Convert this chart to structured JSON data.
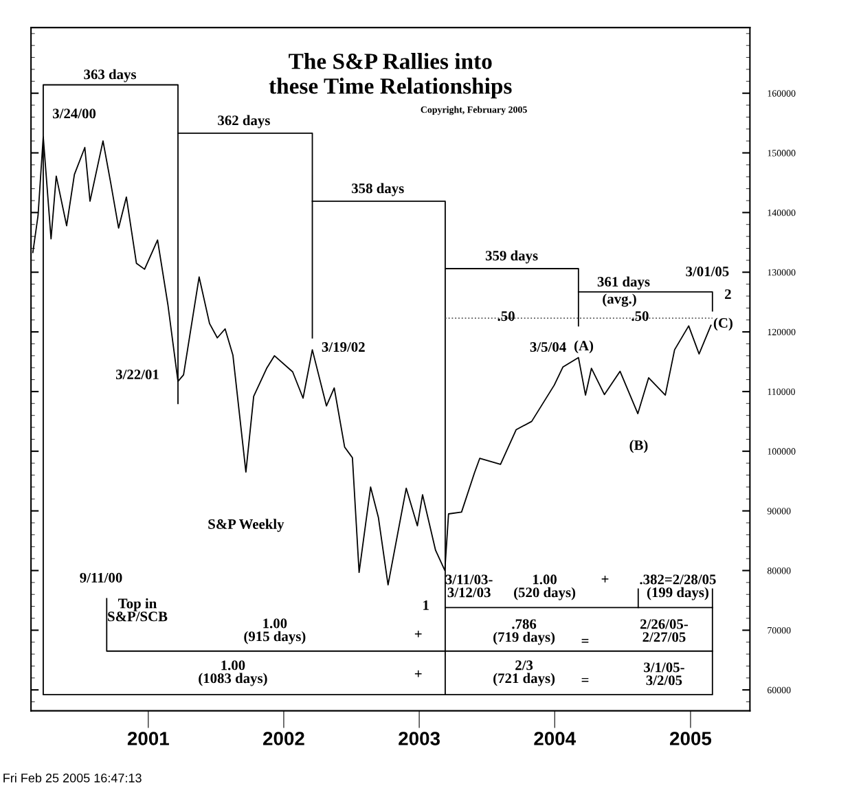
{
  "chart_data": {
    "type": "line",
    "title": "The S&P Rallies into\nthese Time Relationships",
    "subtitle": "Copyright, February 2005",
    "xlim": [
      "2000-02-20",
      "2005-06-10"
    ],
    "xticks": [
      {
        "value": "2001-01-01",
        "label": "2001"
      },
      {
        "value": "2002-01-01",
        "label": "2002"
      },
      {
        "value": "2003-01-01",
        "label": "2003"
      },
      {
        "value": "2004-01-01",
        "label": "2004"
      },
      {
        "value": "2005-01-01",
        "label": "2005"
      }
    ],
    "ylim": [
      56500,
      171000
    ],
    "yticks": [
      60000,
      70000,
      80000,
      90000,
      100000,
      110000,
      120000,
      130000,
      140000,
      150000,
      160000
    ],
    "grid": false,
    "marker": "none",
    "line_style": "solid",
    "series": [
      {
        "color": "#000000",
        "x": [
          "2000-02-25",
          "2000-03-10",
          "2000-03-24",
          "2000-04-14",
          "2000-04-28",
          "2000-05-26",
          "2000-06-16",
          "2000-07-14",
          "2000-07-28",
          "2000-09-01",
          "2000-09-22",
          "2000-10-13",
          "2000-11-03",
          "2000-11-30",
          "2000-12-22",
          "2001-01-26",
          "2001-02-23",
          "2001-03-22",
          "2001-04-06",
          "2001-05-18",
          "2001-06-15",
          "2001-07-06",
          "2001-07-27",
          "2001-08-17",
          "2001-09-21",
          "2001-10-12",
          "2001-11-16",
          "2001-12-07",
          "2002-01-25",
          "2002-02-22",
          "2002-03-19",
          "2002-04-26",
          "2002-05-17",
          "2002-06-14",
          "2002-07-05",
          "2002-07-23",
          "2002-08-23",
          "2002-09-13",
          "2002-10-09",
          "2002-11-27",
          "2002-12-27",
          "2003-01-10",
          "2003-02-14",
          "2003-03-11",
          "2003-03-21",
          "2003-04-25",
          "2003-05-30",
          "2003-06-13",
          "2003-08-08",
          "2003-09-19",
          "2003-10-31",
          "2003-12-31",
          "2004-01-23",
          "2004-03-05",
          "2004-03-24",
          "2004-04-09",
          "2004-05-14",
          "2004-06-25",
          "2004-08-12",
          "2004-09-10",
          "2004-10-25",
          "2004-11-19",
          "2004-12-27",
          "2005-01-24",
          "2005-02-25"
        ],
        "values": [
          133300,
          139500,
          152700,
          135600,
          146100,
          137800,
          146400,
          150900,
          141900,
          152000,
          144900,
          137400,
          142600,
          131500,
          130500,
          135400,
          124500,
          111700,
          112800,
          129200,
          121400,
          119000,
          120500,
          116100,
          96500,
          109200,
          113900,
          116000,
          113300,
          108900,
          117000,
          107600,
          110600,
          100700,
          98900,
          79700,
          94000,
          88900,
          77600,
          93800,
          87500,
          92700,
          83400,
          80000,
          89500,
          89800,
          96400,
          98800,
          97800,
          103600,
          105000,
          111100,
          114100,
          115700,
          109400,
          113900,
          109500,
          113400,
          106300,
          112300,
          109400,
          117000,
          121000,
          116300,
          121100
        ]
      },
      {
        "color": "#000000",
        "x": [
          "2001-03-22",
          "2001-03-22",
          "2000-03-24",
          "2000-03-24",
          "2005-03-01",
          "2005-03-01"
        ],
        "values": [
          108000,
          161400,
          161400,
          59200,
          59200,
          76900
        ]
      },
      {
        "color": "#000000",
        "x": [
          "2001-03-22",
          "2002-03-19",
          "2002-03-19"
        ],
        "values": [
          153300,
          153300,
          119000
        ]
      },
      {
        "color": "#000000",
        "x": [
          "2002-03-19",
          "2003-03-12",
          "2003-03-12"
        ],
        "values": [
          141900,
          141900,
          59200
        ]
      },
      {
        "color": "#000000",
        "x": [
          "2003-03-12",
          "2004-03-05",
          "2004-03-05"
        ],
        "values": [
          130600,
          130600,
          121000
        ]
      },
      {
        "color": "#000000",
        "x": [
          "2004-03-05",
          "2005-03-01",
          "2005-03-01"
        ],
        "values": [
          126700,
          126700,
          123500
        ]
      },
      {
        "color": "#000000",
        "x": [
          "2000-09-11",
          "2000-09-11",
          "2005-03-01"
        ],
        "values": [
          75300,
          66500,
          66500
        ]
      },
      {
        "color": "#000000",
        "x": [
          "2003-03-12",
          "2005-03-01"
        ],
        "values": [
          73800,
          73800
        ]
      },
      {
        "color": "#000000",
        "x": [
          "2004-08-13",
          "2004-08-13"
        ],
        "values": [
          76900,
          73800
        ]
      },
      {
        "color": "#555555",
        "line_style": "dotted",
        "x": [
          "2003-03-12",
          "2004-03-05",
          "2005-03-01"
        ],
        "values": [
          122300,
          122300,
          122300
        ]
      }
    ],
    "annotations": [
      "363 days",
      "362 days",
      "358 days",
      "359 days",
      "361 days",
      "(avg.)",
      ".50",
      ".50",
      "3/24/00",
      "3/22/01",
      "3/19/02",
      "3/5/04",
      "(A)",
      "(B)",
      "(C)",
      "2",
      "3/01/05",
      "S&P Weekly",
      "9/11/00",
      "Top in\nS&P/SCB",
      "3/11/03-\n3/12/03",
      "1",
      "1.00\n(520 days)",
      "+",
      ".382=2/28/05\n(199 days)",
      "1.00\n(915 days)",
      "+",
      ".786\n(719 days)",
      "=",
      "2/26/05-\n2/27/05",
      "1.00\n(1083 days)",
      "+",
      "2/3\n(721 days)",
      "=",
      "3/1/05-\n3/2/05",
      "Fri Feb 25 2005 16:47:13"
    ]
  }
}
